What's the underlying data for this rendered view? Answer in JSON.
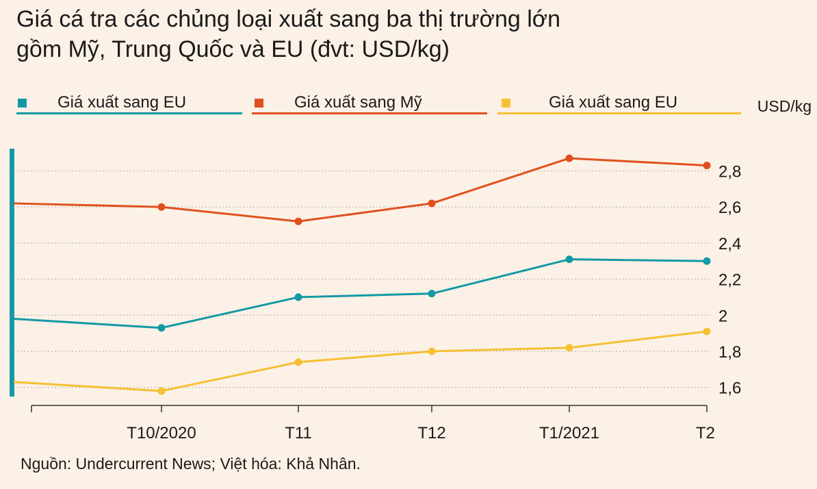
{
  "title_line1": "Giá cá tra các chủng loại xuất sang ba thị trường lớn",
  "title_line2": "gồm Mỹ, Trung Quốc và EU (đvt: USD/kg)",
  "legend": [
    {
      "label": "Giá xuất sang EU",
      "color": "#1499a6"
    },
    {
      "label": "Giá xuất sang Mỹ",
      "color": "#e0501e"
    },
    {
      "label": "Giá xuất sang EU",
      "color": "#f6c033"
    }
  ],
  "unit": "USD/kg",
  "source": "Nguồn: Undercurrent News; Việt hóa: Khả Nhân.",
  "accent_color": "#1499a6",
  "chart_data": {
    "type": "line",
    "categories": [
      "",
      "T10/2020",
      "T11",
      "T12",
      "T1/2021",
      "T2"
    ],
    "ylim": [
      1.5,
      2.95
    ],
    "yticks": [
      1.6,
      1.8,
      2,
      2.2,
      2.4,
      2.6,
      2.8
    ],
    "ytick_labels": [
      "1,6",
      "1,8",
      "2",
      "2,2",
      "2,4",
      "2,6",
      "2,8"
    ],
    "grid": "horizontal dotted",
    "axis_position": "right",
    "series": [
      {
        "name": "Giá xuất sang EU",
        "color": "#1499a6",
        "values": [
          1.98,
          1.93,
          2.1,
          2.12,
          2.31,
          2.3
        ]
      },
      {
        "name": "Giá xuất sang Mỹ",
        "color": "#e0501e",
        "values": [
          2.62,
          2.6,
          2.52,
          2.62,
          2.87,
          2.83
        ]
      },
      {
        "name": "Giá xuất sang EU",
        "color": "#f6c033",
        "values": [
          1.63,
          1.58,
          1.74,
          1.8,
          1.82,
          1.91
        ]
      }
    ]
  }
}
